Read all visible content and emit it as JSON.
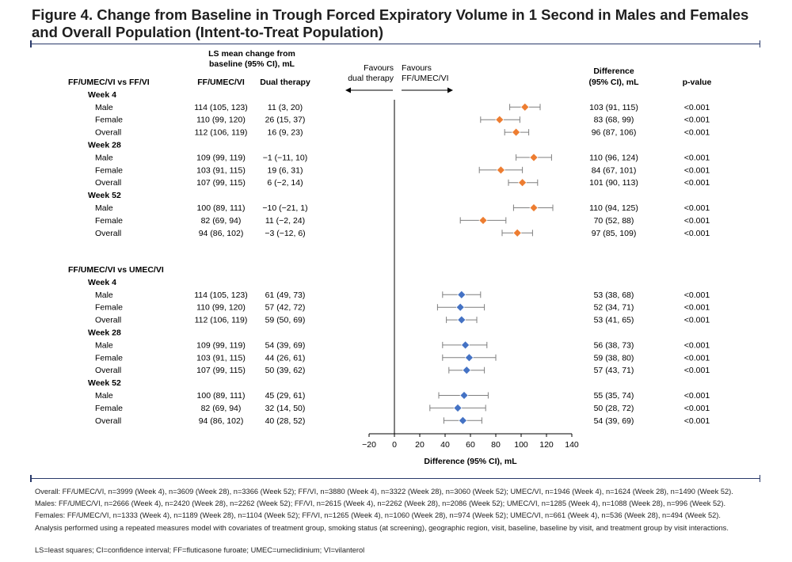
{
  "title": "Figure 4. Change from Baseline in Trough Forced Expiratory Volume in 1 Second in Males and Females and Overall Population (Intent-to-Treat Population)",
  "headers": {
    "ls_mean_line1": "LS mean change from",
    "ls_mean_line2": "baseline (95% CI), mL",
    "col_active": "FF/UMEC/VI",
    "col_comparator": "Dual therapy",
    "favours_left_line1": "Favours",
    "favours_left_line2": "dual therapy",
    "favours_right_line1": "Favours",
    "favours_right_line2": "FF/UMEC/VI",
    "difference_line1": "Difference",
    "difference_line2": "(95% CI), mL",
    "pvalue": "p-value"
  },
  "colors": {
    "group1_marker": "#ed7d31",
    "group2_marker": "#4472c4",
    "whisker": "#7f7f7f",
    "rule": "#2a3a6a"
  },
  "chart_data": {
    "type": "forest",
    "xlabel": "Difference (95% CI), mL",
    "xlim": [
      -20,
      140
    ],
    "xticks": [
      -20,
      0,
      20,
      40,
      60,
      80,
      100,
      120,
      140
    ],
    "xtick_labels": [
      "−20",
      "0",
      "20",
      "40",
      "60",
      "80",
      "100",
      "120",
      "140"
    ],
    "reference_line": 0,
    "groups": [
      {
        "label": "FF/UMEC/VI vs FF/VI",
        "marker": "diamond-orange",
        "weeks": [
          {
            "label": "Week 4",
            "rows": [
              {
                "subgroup": "Male",
                "active": "114 (105, 123)",
                "comparator": "11 (3, 20)",
                "diff_text": "103 (91, 115)",
                "p": "<0.001",
                "est": 103,
                "lo": 91,
                "hi": 115
              },
              {
                "subgroup": "Female",
                "active": "110 (99, 120)",
                "comparator": "26 (15, 37)",
                "diff_text": "83 (68, 99)",
                "p": "<0.001",
                "est": 83,
                "lo": 68,
                "hi": 99
              },
              {
                "subgroup": "Overall",
                "active": "112 (106, 119)",
                "comparator": "16 (9, 23)",
                "diff_text": "96 (87, 106)",
                "p": "<0.001",
                "est": 96,
                "lo": 87,
                "hi": 106
              }
            ]
          },
          {
            "label": "Week 28",
            "rows": [
              {
                "subgroup": "Male",
                "active": "109 (99, 119)",
                "comparator": "−1 (−11, 10)",
                "diff_text": "110 (96, 124)",
                "p": "<0.001",
                "est": 110,
                "lo": 96,
                "hi": 124
              },
              {
                "subgroup": "Female",
                "active": "103 (91, 115)",
                "comparator": "19 (6, 31)",
                "diff_text": "84 (67, 101)",
                "p": "<0.001",
                "est": 84,
                "lo": 67,
                "hi": 101
              },
              {
                "subgroup": "Overall",
                "active": "107 (99, 115)",
                "comparator": "6 (−2, 14)",
                "diff_text": "101 (90, 113)",
                "p": "<0.001",
                "est": 101,
                "lo": 90,
                "hi": 113
              }
            ]
          },
          {
            "label": "Week 52",
            "rows": [
              {
                "subgroup": "Male",
                "active": "100 (89, 111)",
                "comparator": "−10 (−21, 1)",
                "diff_text": "110 (94, 125)",
                "p": "<0.001",
                "est": 110,
                "lo": 94,
                "hi": 125
              },
              {
                "subgroup": "Female",
                "active": "82 (69, 94)",
                "comparator": "11 (−2, 24)",
                "diff_text": "70 (52, 88)",
                "p": "<0.001",
                "est": 70,
                "lo": 52,
                "hi": 88
              },
              {
                "subgroup": "Overall",
                "active": "94 (86, 102)",
                "comparator": "−3 (−12, 6)",
                "diff_text": "97 (85, 109)",
                "p": "<0.001",
                "est": 97,
                "lo": 85,
                "hi": 109
              }
            ]
          }
        ]
      },
      {
        "label": "FF/UMEC/VI vs UMEC/VI",
        "marker": "diamond-blue",
        "weeks": [
          {
            "label": "Week 4",
            "rows": [
              {
                "subgroup": "Male",
                "active": "114 (105, 123)",
                "comparator": "61 (49, 73)",
                "diff_text": "53 (38, 68)",
                "p": "<0.001",
                "est": 53,
                "lo": 38,
                "hi": 68
              },
              {
                "subgroup": "Female",
                "active": "110 (99, 120)",
                "comparator": "57 (42, 72)",
                "diff_text": "52 (34, 71)",
                "p": "<0.001",
                "est": 52,
                "lo": 34,
                "hi": 71
              },
              {
                "subgroup": "Overall",
                "active": "112 (106, 119)",
                "comparator": "59 (50, 69)",
                "diff_text": "53 (41, 65)",
                "p": "<0.001",
                "est": 53,
                "lo": 41,
                "hi": 65
              }
            ]
          },
          {
            "label": "Week 28",
            "rows": [
              {
                "subgroup": "Male",
                "active": "109 (99, 119)",
                "comparator": "54 (39, 69)",
                "diff_text": "56 (38, 73)",
                "p": "<0.001",
                "est": 56,
                "lo": 38,
                "hi": 73
              },
              {
                "subgroup": "Female",
                "active": "103 (91, 115)",
                "comparator": "44 (26, 61)",
                "diff_text": "59 (38, 80)",
                "p": "<0.001",
                "est": 59,
                "lo": 38,
                "hi": 80
              },
              {
                "subgroup": "Overall",
                "active": "107 (99, 115)",
                "comparator": "50 (39, 62)",
                "diff_text": "57 (43, 71)",
                "p": "<0.001",
                "est": 57,
                "lo": 43,
                "hi": 71
              }
            ]
          },
          {
            "label": "Week 52",
            "rows": [
              {
                "subgroup": "Male",
                "active": "100 (89, 111)",
                "comparator": "45 (29, 61)",
                "diff_text": "55 (35, 74)",
                "p": "<0.001",
                "est": 55,
                "lo": 35,
                "hi": 74
              },
              {
                "subgroup": "Female",
                "active": "82 (69, 94)",
                "comparator": "32 (14, 50)",
                "diff_text": "50 (28, 72)",
                "p": "<0.001",
                "est": 50,
                "lo": 28,
                "hi": 72
              },
              {
                "subgroup": "Overall",
                "active": "94 (86, 102)",
                "comparator": "40 (28, 52)",
                "diff_text": "54 (39, 69)",
                "p": "<0.001",
                "est": 54,
                "lo": 39,
                "hi": 69
              }
            ]
          }
        ]
      }
    ]
  },
  "footnotes": [
    "Overall: FF/UMEC/VI, n=3999 (Week 4), n=3609 (Week 28), n=3366 (Week 52); FF/VI, n=3880 (Week 4), n=3322 (Week 28), n=3060 (Week 52); UMEC/VI, n=1946 (Week 4), n=1624 (Week 28), n=1490 (Week 52).",
    "Males: FF/UMEC/VI, n=2666 (Week 4), n=2420 (Week 28), n=2262 (Week 52); FF/VI, n=2615 (Week 4), n=2262 (Week 28), n=2086 (Week 52); UMEC/VI, n=1285 (Week 4), n=1088 (Week 28), n=996 (Week 52).",
    "Females: FF/UMEC/VI, n=1333 (Week 4), n=1189 (Week 28), n=1104 (Week 52); FF/VI, n=1265 (Week 4), n=1060 (Week 28), n=974 (Week 52); UMEC/VI, n=661 (Week 4), n=536 (Week 28), n=494 (Week 52).",
    "Analysis performed using a repeated measures model with covariates of treatment group, smoking status (at screening), geographic region, visit, baseline, baseline by visit, and treatment group by visit interactions."
  ],
  "abbreviations": "LS=least squares; CI=confidence interval; FF=fluticasone furoate; UMEC=umeclidinium; VI=vilanterol"
}
